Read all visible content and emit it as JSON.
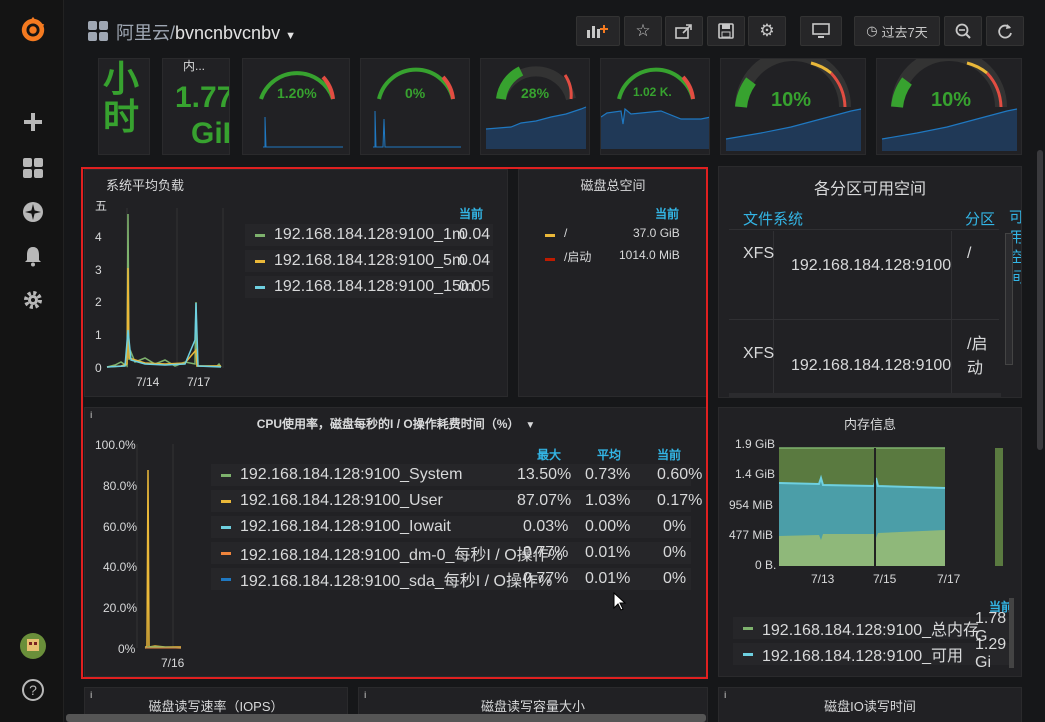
{
  "header": {
    "breadcrumb": "阿里云/",
    "dashboard": "bvncnbvcnbv",
    "time_range": "过去7天"
  },
  "top_stats": [
    {
      "big": "小",
      "big2": "时"
    },
    {
      "label": "内...",
      "value": "1.77",
      "unit": "GiB"
    },
    {
      "value": "1.20%",
      "color": "#37a22f"
    },
    {
      "value": "0%",
      "color": "#37a22f"
    },
    {
      "value": "28%",
      "color": "#37a22f",
      "gauge": 0.28
    },
    {
      "value": "1.02 K.",
      "color": "#37a22f"
    },
    {
      "value": "10%",
      "color": "#37a22f",
      "gauge": 0.1
    },
    {
      "value": "10%",
      "color": "#37a22f",
      "gauge": 0.1
    }
  ],
  "load_panel": {
    "title": "系统平均负载",
    "legend_header": "当前",
    "y_ticks": [
      "五",
      "4",
      "3",
      "2",
      "1",
      "0"
    ],
    "x_ticks": [
      "7/14",
      "7/17"
    ],
    "series": [
      {
        "name": "192.168.184.128:9100_1m",
        "current": "0.04",
        "color": "#7eb26d"
      },
      {
        "name": "192.168.184.128:9100_5m",
        "current": "0.04",
        "color": "#eab839"
      },
      {
        "name": "192.168.184.128:9100_15m",
        "current": "0.05",
        "color": "#6ed0e0"
      }
    ]
  },
  "disk_total": {
    "title": "磁盘总空间",
    "legend_header": "当前",
    "series": [
      {
        "name": "/",
        "current": "37.0 GiB",
        "color": "#eab839"
      },
      {
        "name": "/启动",
        "current": "1014.0 MiB",
        "color": "#bf1b00"
      }
    ]
  },
  "partitions": {
    "title": "各分区可用空间",
    "columns": [
      "文件系统",
      "分区",
      "可用空间"
    ],
    "rows": [
      {
        "fs": "XFS",
        "host": "192.168.184.128:9100",
        "mount": "/"
      },
      {
        "fs": "XFS",
        "host": "192.168.184.128:9100",
        "mount": "/启动"
      }
    ]
  },
  "cpu_panel": {
    "title": "CPU使用率，磁盘每秒的I / O操作耗费时间（%）",
    "columns": [
      "最大",
      "平均",
      "当前"
    ],
    "y_ticks": [
      "100.0%",
      "80.0%",
      "60.0%",
      "40.0%",
      "20.0%",
      "0%"
    ],
    "x_ticks": [
      "7/16"
    ],
    "series": [
      {
        "name": "192.168.184.128:9100_System",
        "max": "13.50%",
        "avg": "0.73%",
        "current": "0.60%",
        "color": "#7eb26d"
      },
      {
        "name": "192.168.184.128:9100_User",
        "max": "87.07%",
        "avg": "1.03%",
        "current": "0.17%",
        "color": "#eab839"
      },
      {
        "name": "192.168.184.128:9100_Iowait",
        "max": "0.03%",
        "avg": "0.00%",
        "current": "0%",
        "color": "#6ed0e0"
      },
      {
        "name": "192.168.184.128:9100_dm-0_每秒I / O操作%",
        "max": "0.77%",
        "avg": "0.01%",
        "current": "0%",
        "color": "#ef843c"
      },
      {
        "name": "192.168.184.128:9100_sda_每秒I / O操作%",
        "max": "0.77%",
        "avg": "0.01%",
        "current": "0%",
        "color": "#1f78c1"
      }
    ]
  },
  "memory": {
    "title": "内存信息",
    "legend_header": "当前",
    "y_ticks": [
      "1.9 GiB",
      "1.4 GiB",
      "954 MiB",
      "477 MiB",
      "0 B."
    ],
    "x_ticks": [
      "7/13",
      "7/15",
      "7/17"
    ],
    "series": [
      {
        "name": "192.168.184.128:9100_总内存",
        "current": "1.78 G",
        "color": "#7eb26d"
      },
      {
        "name": "192.168.184.128:9100_可用",
        "current": "1.29 Gi",
        "color": "#6ed0e0"
      }
    ]
  },
  "bottom_panels": [
    "磁盘读写速率（IOPS）",
    "磁盘读写容量大小",
    "磁盘IO读写时间"
  ]
}
